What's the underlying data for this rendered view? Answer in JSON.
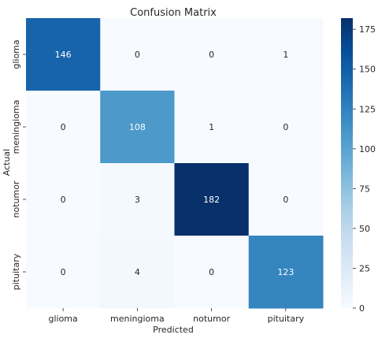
{
  "chart_data": {
    "type": "heatmap",
    "title": "Confusion Matrix",
    "xlabel": "Predicted",
    "ylabel": "Actual",
    "x_categories": [
      "glioma",
      "meningioma",
      "notumor",
      "pituitary"
    ],
    "y_categories": [
      "glioma",
      "meningioma",
      "notumor",
      "pituitary"
    ],
    "values": [
      [
        146,
        0,
        0,
        1
      ],
      [
        0,
        108,
        1,
        0
      ],
      [
        0,
        3,
        182,
        0
      ],
      [
        0,
        4,
        0,
        123
      ]
    ],
    "colormap": "Blues",
    "colorbar": {
      "min": 0,
      "max": 182,
      "ticks": [
        0,
        25,
        50,
        75,
        100,
        125,
        150,
        175
      ]
    },
    "annotations": true
  }
}
